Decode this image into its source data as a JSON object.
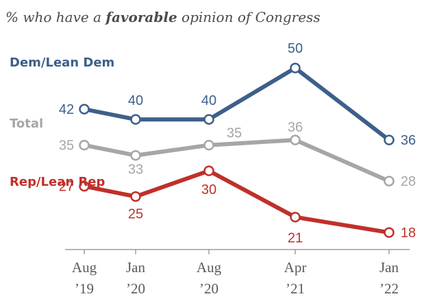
{
  "chart_data": {
    "type": "line",
    "title_parts": [
      "% who have a ",
      "favorable",
      " opinion of Congress"
    ],
    "categories": [
      "Aug '19",
      "Jan '20",
      "Aug '20",
      "Apr '21",
      "Jan '22"
    ],
    "tick_lines": [
      [
        "Aug",
        "’19"
      ],
      [
        "Jan",
        "’20"
      ],
      [
        "Aug",
        "’20"
      ],
      [
        "Apr",
        "’21"
      ],
      [
        "Jan",
        "’22"
      ]
    ],
    "series": [
      {
        "name": "Dem/Lean Dem",
        "color": "#3e5f8a",
        "values": [
          42,
          40,
          40,
          50,
          36
        ]
      },
      {
        "name": "Total",
        "color": "#a6a6a6",
        "values": [
          35,
          33,
          35,
          36,
          28
        ]
      },
      {
        "name": "Rep/Lean Rep",
        "color": "#c0302a",
        "values": [
          27,
          25,
          30,
          21,
          18
        ]
      }
    ],
    "xlabel": "",
    "ylabel": "",
    "grid": false,
    "legend": "inline-left"
  }
}
